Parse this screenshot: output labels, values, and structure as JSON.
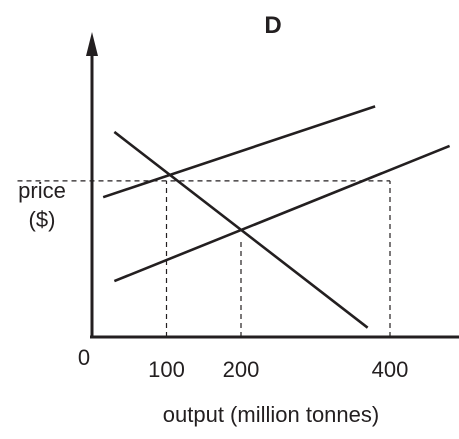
{
  "chart_data": {
    "type": "line",
    "title": "D",
    "xlabel": "output (million tonnes)",
    "ylabel": "price\n($)",
    "origin_label": "0",
    "xticks": [
      {
        "value": 100,
        "label": "100"
      },
      {
        "value": 200,
        "label": "200"
      },
      {
        "value": 400,
        "label": "400"
      }
    ],
    "xlim": [
      -100,
      475
    ],
    "ylim": [
      0,
      100
    ],
    "grid": false,
    "series": [
      {
        "role": "demand",
        "x": [
          30,
          370
        ],
        "y": [
          88,
          4
        ]
      },
      {
        "role": "supply-upper",
        "x": [
          15,
          380
        ],
        "y": [
          60,
          99
        ]
      },
      {
        "role": "supply-lower",
        "x": [
          30,
          480
        ],
        "y": [
          24,
          82
        ]
      }
    ],
    "dashed_guides": [
      {
        "x_from": -100,
        "x_to": 400,
        "y": 67
      },
      {
        "x": 100,
        "y_from": 0,
        "y_to": 67
      },
      {
        "x": 200,
        "y_from": 0,
        "y_to": 42
      },
      {
        "x": 400,
        "y_from": 0,
        "y_to": 67
      }
    ]
  }
}
